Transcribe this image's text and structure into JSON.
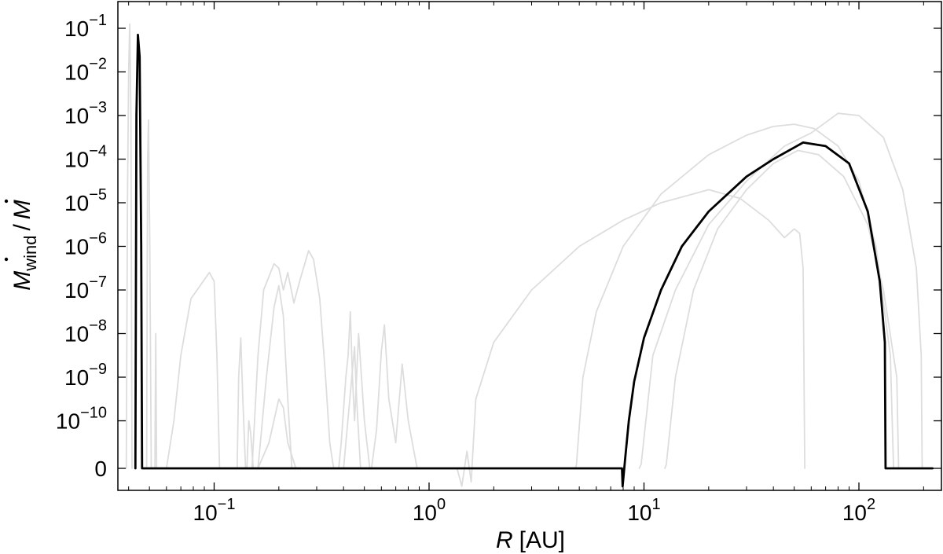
{
  "chart_data": {
    "type": "line",
    "xlabel": {
      "var": "R",
      "unit": "[AU]"
    },
    "ylabel": {
      "num_var": "M",
      "num_sub": "wind",
      "sep": "/",
      "den_var": "M"
    },
    "x_scale": "log",
    "x_range": [
      0.038,
      250
    ],
    "x_ticks": [
      {
        "value": 0.1,
        "base": "10",
        "exp": "−1"
      },
      {
        "value": 1,
        "base": "10",
        "exp": "0"
      },
      {
        "value": 10,
        "base": "10",
        "exp": "1"
      },
      {
        "value": 100,
        "base": "10",
        "exp": "2"
      }
    ],
    "y_scale": "log with zero level",
    "y_ticks": [
      {
        "value": 0,
        "label": "0"
      },
      {
        "value": -10,
        "base": "10",
        "exp": "−10"
      },
      {
        "value": -9,
        "base": "10",
        "exp": "−9"
      },
      {
        "value": -8,
        "base": "10",
        "exp": "−8"
      },
      {
        "value": -7,
        "base": "10",
        "exp": "−7"
      },
      {
        "value": -6,
        "base": "10",
        "exp": "−6"
      },
      {
        "value": -5,
        "base": "10",
        "exp": "−5"
      },
      {
        "value": -4,
        "base": "10",
        "exp": "−4"
      },
      {
        "value": -3,
        "base": "10",
        "exp": "−3"
      },
      {
        "value": -2,
        "base": "10",
        "exp": "−2"
      },
      {
        "value": -1,
        "base": "10",
        "exp": "−1"
      }
    ],
    "grid": false,
    "legend": "none",
    "colors": {
      "highlight": "#000000",
      "background": "#dddddd"
    },
    "note": "y values are log10 of the ratio; null means the ratio is 0",
    "series": [
      {
        "role": "highlight",
        "points": [
          [
            0.043,
            null
          ],
          [
            0.0435,
            -3.0
          ],
          [
            0.0442,
            -1.15
          ],
          [
            0.045,
            -1.65
          ],
          [
            0.0458,
            -6.0
          ],
          [
            0.0462,
            null
          ],
          [
            0.14,
            null
          ],
          [
            0.145,
            null
          ],
          [
            0.15,
            null
          ],
          [
            7.9,
            null
          ],
          [
            7.95,
            -11.5
          ],
          [
            8.2,
            -10.8
          ],
          [
            8.5,
            -10.0
          ],
          [
            9.0,
            -9.1
          ],
          [
            10,
            -8.1
          ],
          [
            12,
            -7.0
          ],
          [
            15,
            -6.0
          ],
          [
            20,
            -5.2
          ],
          [
            30,
            -4.4
          ],
          [
            40,
            -4.0
          ],
          [
            55,
            -3.62
          ],
          [
            70,
            -3.7
          ],
          [
            90,
            -4.1
          ],
          [
            110,
            -5.2
          ],
          [
            125,
            -6.8
          ],
          [
            132,
            -8.2
          ],
          [
            133,
            null
          ],
          [
            220,
            null
          ]
        ]
      },
      {
        "role": "background",
        "points": [
          [
            0.039,
            null
          ],
          [
            0.0395,
            -5.0
          ],
          [
            0.04,
            -2.0
          ],
          [
            0.0405,
            -0.9
          ],
          [
            0.041,
            -3.0
          ],
          [
            0.0415,
            null
          ]
        ]
      },
      {
        "role": "background",
        "points": [
          [
            0.0485,
            null
          ],
          [
            0.049,
            -4.0
          ],
          [
            0.0495,
            -3.1
          ],
          [
            0.0502,
            -6.0
          ],
          [
            0.051,
            null
          ]
        ]
      },
      {
        "role": "background",
        "points": [
          [
            0.053,
            null
          ],
          [
            0.0535,
            -8.0
          ],
          [
            0.054,
            null
          ]
        ]
      },
      {
        "role": "background",
        "points": [
          [
            0.06,
            null
          ],
          [
            0.065,
            -10.0
          ],
          [
            0.07,
            -8.5
          ],
          [
            0.078,
            -7.2
          ],
          [
            0.095,
            -6.6
          ],
          [
            0.1,
            -6.8
          ],
          [
            0.103,
            -8.5
          ],
          [
            0.106,
            null
          ]
        ]
      },
      {
        "role": "background",
        "points": [
          [
            0.128,
            null
          ],
          [
            0.13,
            -9.0
          ],
          [
            0.133,
            -8.1
          ],
          [
            0.136,
            -9.5
          ],
          [
            0.14,
            null
          ]
        ]
      },
      {
        "role": "background",
        "points": [
          [
            0.142,
            null
          ],
          [
            0.145,
            -10.0
          ],
          [
            0.148,
            -10.3
          ],
          [
            0.152,
            null
          ]
        ]
      },
      {
        "role": "background",
        "points": [
          [
            0.15,
            null
          ],
          [
            0.16,
            -8.5
          ],
          [
            0.17,
            -7.0
          ],
          [
            0.19,
            -6.4
          ],
          [
            0.2,
            -6.5
          ],
          [
            0.21,
            -7.0
          ],
          [
            0.22,
            -6.6
          ],
          [
            0.235,
            -7.3
          ],
          [
            0.25,
            -6.8
          ],
          [
            0.275,
            -6.1
          ],
          [
            0.29,
            -6.3
          ],
          [
            0.31,
            -7.2
          ],
          [
            0.33,
            -9.0
          ],
          [
            0.345,
            -10.5
          ],
          [
            0.36,
            null
          ]
        ]
      },
      {
        "role": "background",
        "points": [
          [
            0.16,
            null
          ],
          [
            0.175,
            -9.0
          ],
          [
            0.19,
            -7.4
          ],
          [
            0.2,
            -6.9
          ],
          [
            0.21,
            -7.6
          ],
          [
            0.22,
            -9.5
          ],
          [
            0.23,
            null
          ]
        ]
      },
      {
        "role": "background",
        "points": [
          [
            0.16,
            null
          ],
          [
            0.18,
            -10.5
          ],
          [
            0.2,
            -9.5
          ],
          [
            0.21,
            -9.7
          ],
          [
            0.22,
            -10.5
          ],
          [
            0.24,
            null
          ]
        ]
      },
      {
        "role": "background",
        "points": [
          [
            0.38,
            null
          ],
          [
            0.39,
            -10.5
          ],
          [
            0.41,
            -9.0
          ],
          [
            0.42,
            -8.5
          ],
          [
            0.43,
            -7.5
          ],
          [
            0.44,
            -9.0
          ],
          [
            0.45,
            -10.0
          ],
          [
            0.47,
            -8.0
          ],
          [
            0.5,
            -10.0
          ],
          [
            0.53,
            null
          ]
        ]
      },
      {
        "role": "background",
        "points": [
          [
            0.4,
            null
          ],
          [
            0.45,
            -8.3
          ],
          [
            0.46,
            -9.5
          ],
          [
            0.48,
            null
          ]
        ]
      },
      {
        "role": "background",
        "points": [
          [
            0.54,
            null
          ],
          [
            0.57,
            -10.2
          ],
          [
            0.6,
            -8.4
          ],
          [
            0.62,
            -7.8
          ],
          [
            0.65,
            -9.5
          ],
          [
            0.7,
            -10.5
          ],
          [
            0.75,
            -8.7
          ],
          [
            0.8,
            -10.0
          ],
          [
            0.88,
            null
          ]
        ]
      },
      {
        "role": "background",
        "points": [
          [
            1.35,
            null
          ],
          [
            1.42,
            -11.5
          ],
          [
            1.5,
            -10.7
          ],
          [
            1.57,
            -11.4
          ],
          [
            1.65,
            -9.5
          ],
          [
            2,
            -8.2
          ],
          [
            3,
            -7.0
          ],
          [
            5,
            -6.0
          ],
          [
            8,
            -5.4
          ],
          [
            12,
            -5.0
          ],
          [
            20,
            -4.7
          ],
          [
            28,
            -4.9
          ],
          [
            38,
            -5.4
          ],
          [
            45,
            -5.8
          ],
          [
            50,
            -5.6
          ],
          [
            53,
            -5.7
          ],
          [
            55,
            -6.5
          ],
          [
            56,
            null
          ]
        ]
      },
      {
        "role": "background",
        "points": [
          [
            4.8,
            null
          ],
          [
            4.85,
            -11.0
          ],
          [
            5.2,
            -9.0
          ],
          [
            6.0,
            -7.5
          ],
          [
            8,
            -6.0
          ],
          [
            12,
            -4.8
          ],
          [
            20,
            -3.9
          ],
          [
            30,
            -3.45
          ],
          [
            40,
            -3.25
          ],
          [
            50,
            -3.2
          ],
          [
            62,
            -3.3
          ],
          [
            80,
            -3.7
          ],
          [
            100,
            -4.5
          ],
          [
            120,
            -6.0
          ],
          [
            140,
            -8.5
          ],
          [
            145,
            null
          ]
        ]
      },
      {
        "role": "background",
        "points": [
          [
            9.5,
            null
          ],
          [
            9.7,
            -11.0
          ],
          [
            11,
            -8.5
          ],
          [
            14,
            -7.0
          ],
          [
            20,
            -5.5
          ],
          [
            30,
            -4.5
          ],
          [
            45,
            -3.7
          ],
          [
            60,
            -3.4
          ],
          [
            80,
            -2.95
          ],
          [
            100,
            -3.0
          ],
          [
            130,
            -3.5
          ],
          [
            160,
            -4.7
          ],
          [
            185,
            -6.5
          ],
          [
            195,
            -8.5
          ],
          [
            197,
            null
          ]
        ]
      },
      {
        "role": "background",
        "points": [
          [
            12.5,
            null
          ],
          [
            12.7,
            -11.0
          ],
          [
            14,
            -9.0
          ],
          [
            17,
            -7.0
          ],
          [
            22,
            -5.6
          ],
          [
            30,
            -4.7
          ],
          [
            40,
            -4.1
          ],
          [
            52,
            -3.8
          ],
          [
            65,
            -3.9
          ],
          [
            85,
            -4.4
          ],
          [
            110,
            -5.5
          ],
          [
            130,
            -7.0
          ],
          [
            150,
            -9.0
          ],
          [
            153,
            null
          ]
        ]
      }
    ]
  }
}
